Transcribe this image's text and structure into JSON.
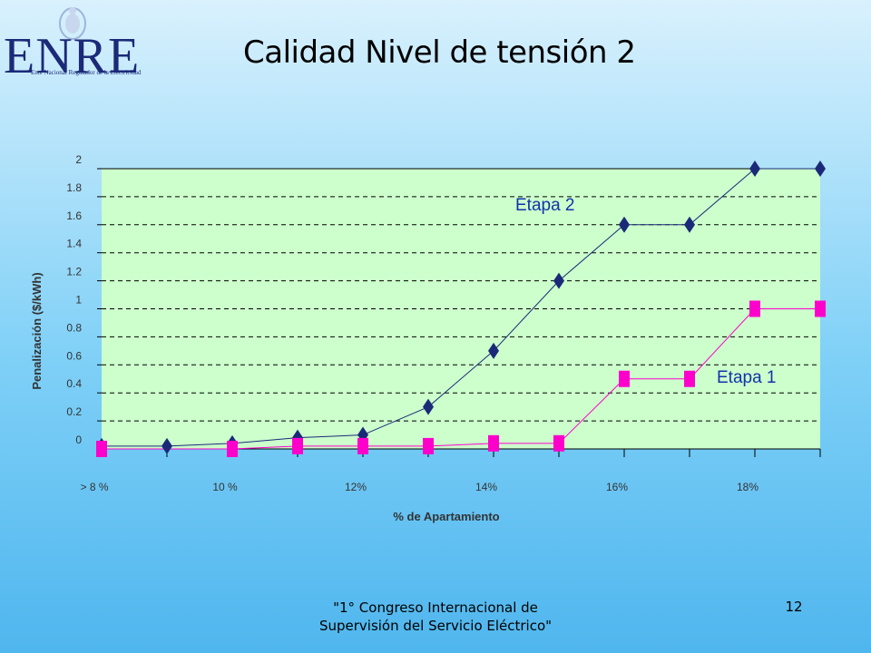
{
  "logo": {
    "letters": "ENRE",
    "subtitle": "Ente Nacional Regulador de la Electricidad",
    "icon": "coat-of-arms-icon"
  },
  "slide": {
    "title": "Calidad Nivel de tensión 2",
    "footer_line1": "\"1° Congreso Internacional de",
    "footer_line2": "Supervisión del Servicio Eléctrico\"",
    "page_number": "12"
  },
  "chart_data": {
    "type": "line",
    "title": "",
    "xlabel": "% de Apartamiento",
    "ylabel": "Penalización  ($/kWh)",
    "ylim": [
      0,
      2
    ],
    "y_ticks": [
      "0",
      "0.2",
      "0.4",
      "0.6",
      "0.8",
      "1",
      "1.2",
      "1.4",
      "1.6",
      "1.8",
      "2"
    ],
    "x_tick_labels": [
      "> 8 %",
      "10 %",
      "12%",
      "14%",
      "16%",
      "18%"
    ],
    "x": [
      8,
      9,
      10,
      11,
      12,
      13,
      14,
      15,
      16,
      17,
      18,
      19
    ],
    "xlim": [
      8,
      19
    ],
    "grid": true,
    "plot_background": "#ccffcc",
    "series": [
      {
        "name": "Etapa 2",
        "color": "#1b2a78",
        "marker": "diamond",
        "values": [
          0.02,
          0.02,
          0.04,
          0.08,
          0.1,
          0.3,
          0.7,
          1.2,
          1.6,
          1.6,
          2.0,
          2.0
        ]
      },
      {
        "name": "Etapa 1",
        "color": "#ff00cc",
        "marker": "square",
        "values": [
          0.0,
          null,
          0.0,
          0.02,
          0.02,
          0.02,
          0.04,
          0.04,
          0.5,
          0.5,
          1.0,
          1.0
        ]
      }
    ]
  }
}
